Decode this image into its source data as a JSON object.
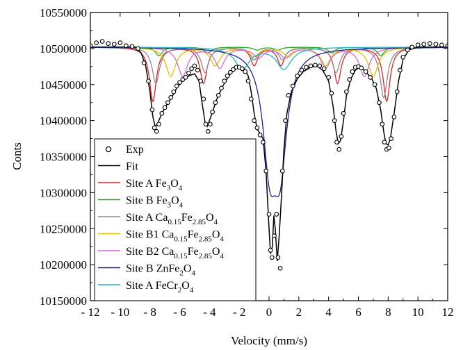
{
  "chart_data": {
    "type": "scatter",
    "xlabel": "Velocity (mm/s)",
    "ylabel": "Conts",
    "xlim": [
      -12,
      12
    ],
    "ylim": [
      10150000,
      10550000
    ],
    "xticks": [
      -12,
      -10,
      -8,
      -6,
      -4,
      -2,
      0,
      2,
      4,
      6,
      8,
      10,
      12
    ],
    "xtick_labels": [
      "- 12",
      "- 10",
      "- 8",
      "- 6",
      "- 4",
      "- 2",
      "0",
      "2",
      "4",
      "6",
      "8",
      "10",
      "12"
    ],
    "yticks": [
      10150000,
      10200000,
      10250000,
      10300000,
      10350000,
      10400000,
      10450000,
      10500000,
      10550000
    ],
    "ytick_labels": [
      "10150000",
      "10200000",
      "10250000",
      "10300000",
      "10350000",
      "10400000",
      "10450000",
      "10500000",
      "10550000"
    ],
    "grid": false,
    "legend_position": "bottom-left",
    "baseline": 10502000,
    "series": [
      {
        "name": "Exp",
        "kind": "markers",
        "color": "#000000",
        "points": [
          [
            -12.0,
            10504000
          ],
          [
            -11.6,
            10508000
          ],
          [
            -11.2,
            10510000
          ],
          [
            -10.8,
            10507000
          ],
          [
            -10.4,
            10506000
          ],
          [
            -10.0,
            10508000
          ],
          [
            -9.6,
            10504000
          ],
          [
            -9.2,
            10503000
          ],
          [
            -8.8,
            10500000
          ],
          [
            -8.4,
            10480000
          ],
          [
            -8.1,
            10455000
          ],
          [
            -7.85,
            10415000
          ],
          [
            -7.7,
            10390000
          ],
          [
            -7.55,
            10385000
          ],
          [
            -7.4,
            10395000
          ],
          [
            -7.2,
            10410000
          ],
          [
            -7.0,
            10418000
          ],
          [
            -6.8,
            10425000
          ],
          [
            -6.6,
            10432000
          ],
          [
            -6.4,
            10440000
          ],
          [
            -6.2,
            10448000
          ],
          [
            -6.0,
            10453000
          ],
          [
            -5.8,
            10457000
          ],
          [
            -5.6,
            10460000
          ],
          [
            -5.4,
            10466000
          ],
          [
            -5.2,
            10472000
          ],
          [
            -5.0,
            10476000
          ],
          [
            -4.8,
            10470000
          ],
          [
            -4.6,
            10455000
          ],
          [
            -4.4,
            10430000
          ],
          [
            -4.25,
            10395000
          ],
          [
            -4.1,
            10385000
          ],
          [
            -3.95,
            10395000
          ],
          [
            -3.8,
            10412000
          ],
          [
            -3.6,
            10425000
          ],
          [
            -3.4,
            10435000
          ],
          [
            -3.2,
            10445000
          ],
          [
            -3.0,
            10455000
          ],
          [
            -2.8,
            10462000
          ],
          [
            -2.6,
            10467000
          ],
          [
            -2.4,
            10471000
          ],
          [
            -2.2,
            10474000
          ],
          [
            -2.0,
            10474000
          ],
          [
            -1.8,
            10472000
          ],
          [
            -1.6,
            10468000
          ],
          [
            -1.4,
            10455000
          ],
          [
            -1.2,
            10430000
          ],
          [
            -1.0,
            10400000
          ],
          [
            -0.8,
            10390000
          ],
          [
            -0.6,
            10380000
          ],
          [
            -0.4,
            10370000
          ],
          [
            -0.2,
            10330000
          ],
          [
            0.0,
            10270000
          ],
          [
            0.1,
            10220000
          ],
          [
            0.2,
            10210000
          ],
          [
            0.35,
            10240000
          ],
          [
            0.5,
            10270000
          ],
          [
            0.6,
            10210000
          ],
          [
            0.75,
            10195000
          ],
          [
            0.9,
            10330000
          ],
          [
            1.1,
            10400000
          ],
          [
            1.3,
            10435000
          ],
          [
            1.6,
            10448000
          ],
          [
            1.9,
            10462000
          ],
          [
            2.2,
            10470000
          ],
          [
            2.5,
            10474000
          ],
          [
            2.8,
            10476000
          ],
          [
            3.1,
            10477000
          ],
          [
            3.4,
            10476000
          ],
          [
            3.7,
            10472000
          ],
          [
            4.0,
            10460000
          ],
          [
            4.2,
            10438000
          ],
          [
            4.4,
            10400000
          ],
          [
            4.55,
            10370000
          ],
          [
            4.7,
            10360000
          ],
          [
            4.85,
            10378000
          ],
          [
            5.0,
            10410000
          ],
          [
            5.2,
            10440000
          ],
          [
            5.4,
            10457000
          ],
          [
            5.6,
            10468000
          ],
          [
            5.8,
            10474000
          ],
          [
            6.0,
            10475000
          ],
          [
            6.2,
            10473000
          ],
          [
            6.5,
            10468000
          ],
          [
            6.8,
            10460000
          ],
          [
            7.1,
            10450000
          ],
          [
            7.4,
            10425000
          ],
          [
            7.6,
            10395000
          ],
          [
            7.75,
            10370000
          ],
          [
            7.9,
            10360000
          ],
          [
            8.05,
            10362000
          ],
          [
            8.2,
            10375000
          ],
          [
            8.4,
            10405000
          ],
          [
            8.6,
            10440000
          ],
          [
            8.8,
            10470000
          ],
          [
            9.0,
            10488000
          ],
          [
            9.3,
            10498000
          ],
          [
            9.6,
            10502000
          ],
          [
            10.0,
            10505000
          ],
          [
            10.4,
            10506000
          ],
          [
            10.8,
            10507000
          ],
          [
            11.2,
            10506000
          ],
          [
            11.6,
            10505000
          ],
          [
            12.0,
            10504000
          ]
        ]
      },
      {
        "name": "Fit",
        "kind": "line",
        "color": "#000000",
        "points": [
          [
            -12.0,
            10502000
          ],
          [
            -9.0,
            10502000
          ],
          [
            -8.6,
            10494000
          ],
          [
            -8.3,
            10478000
          ],
          [
            -8.0,
            10440000
          ],
          [
            -7.8,
            10405000
          ],
          [
            -7.65,
            10392000
          ],
          [
            -7.5,
            10395000
          ],
          [
            -7.3,
            10405000
          ],
          [
            -7.0,
            10418000
          ],
          [
            -6.6,
            10430000
          ],
          [
            -6.2,
            10445000
          ],
          [
            -5.8,
            10455000
          ],
          [
            -5.4,
            10462000
          ],
          [
            -5.0,
            10465000
          ],
          [
            -4.7,
            10455000
          ],
          [
            -4.5,
            10425000
          ],
          [
            -4.3,
            10398000
          ],
          [
            -4.15,
            10392000
          ],
          [
            -4.0,
            10400000
          ],
          [
            -3.8,
            10412000
          ],
          [
            -3.5,
            10430000
          ],
          [
            -3.1,
            10448000
          ],
          [
            -2.7,
            10462000
          ],
          [
            -2.3,
            10472000
          ],
          [
            -2.0,
            10475000
          ],
          [
            -1.7,
            10473000
          ],
          [
            -1.4,
            10462000
          ],
          [
            -1.2,
            10440000
          ],
          [
            -1.0,
            10410000
          ],
          [
            -0.8,
            10388000
          ],
          [
            -0.6,
            10382000
          ],
          [
            -0.4,
            10375000
          ],
          [
            -0.2,
            10330000
          ],
          [
            0.0,
            10250000
          ],
          [
            0.1,
            10215000
          ],
          [
            0.22,
            10225000
          ],
          [
            0.32,
            10268000
          ],
          [
            0.42,
            10250000
          ],
          [
            0.55,
            10205000
          ],
          [
            0.68,
            10240000
          ],
          [
            0.85,
            10300000
          ],
          [
            1.0,
            10360000
          ],
          [
            1.2,
            10410000
          ],
          [
            1.5,
            10440000
          ],
          [
            1.9,
            10458000
          ],
          [
            2.3,
            10468000
          ],
          [
            2.8,
            10474000
          ],
          [
            3.2,
            10476000
          ],
          [
            3.6,
            10470000
          ],
          [
            4.0,
            10455000
          ],
          [
            4.3,
            10420000
          ],
          [
            4.5,
            10385000
          ],
          [
            4.65,
            10368000
          ],
          [
            4.8,
            10372000
          ],
          [
            5.0,
            10400000
          ],
          [
            5.2,
            10435000
          ],
          [
            5.5,
            10458000
          ],
          [
            5.8,
            10470000
          ],
          [
            6.1,
            10474000
          ],
          [
            6.5,
            10468000
          ],
          [
            6.9,
            10458000
          ],
          [
            7.2,
            10445000
          ],
          [
            7.5,
            10415000
          ],
          [
            7.7,
            10385000
          ],
          [
            7.85,
            10368000
          ],
          [
            8.0,
            10366000
          ],
          [
            8.15,
            10375000
          ],
          [
            8.4,
            10410000
          ],
          [
            8.7,
            10455000
          ],
          [
            9.0,
            10485000
          ],
          [
            9.4,
            10498000
          ],
          [
            10.0,
            10502000
          ],
          [
            12.0,
            10502000
          ]
        ]
      }
    ],
    "components": [
      {
        "name": "Site A Fe3O4",
        "color": "#e32222",
        "width": 0.28,
        "peaks": [
          [
            -7.8,
            75000
          ],
          [
            -4.4,
            50000
          ],
          [
            -1.0,
            25000
          ],
          [
            0.8,
            25000
          ],
          [
            4.6,
            50000
          ],
          [
            7.9,
            75000
          ]
        ]
      },
      {
        "name": "Site B Fe3O4",
        "color": "#22aa22",
        "width": 0.28,
        "peaks": [
          [
            -7.4,
            12000
          ],
          [
            -4.1,
            8000
          ],
          [
            -0.8,
            4000
          ],
          [
            0.6,
            4000
          ],
          [
            4.2,
            8000
          ],
          [
            7.5,
            12000
          ]
        ]
      },
      {
        "name": "Site A Ca0.15Fe2.85O4",
        "color": "#8a8a8a",
        "width": 0.3,
        "peaks": [
          [
            -7.6,
            50000
          ],
          [
            -4.3,
            35000
          ],
          [
            -1.0,
            17000
          ],
          [
            0.9,
            17000
          ],
          [
            4.5,
            35000
          ],
          [
            7.7,
            70000
          ]
        ]
      },
      {
        "name": "Site B1 Ca0.15Fe2.85O4",
        "color": "#e0c200",
        "width": 0.4,
        "peaks": [
          [
            -6.6,
            40000
          ],
          [
            -3.6,
            25000
          ],
          [
            -1.0,
            12000
          ],
          [
            1.3,
            12000
          ],
          [
            3.8,
            25000
          ],
          [
            7.0,
            40000
          ]
        ]
      },
      {
        "name": "Site B2 Ca0.15Fe2.85O4",
        "color": "#d66bd6",
        "width": 0.4,
        "peaks": [
          [
            -5.8,
            40000
          ],
          [
            -3.3,
            28000
          ],
          [
            -0.7,
            14000
          ],
          [
            1.1,
            14000
          ],
          [
            3.8,
            28000
          ],
          [
            6.4,
            40000
          ]
        ]
      },
      {
        "name": "Site B ZnFe2O4",
        "color": "#1f1f8f",
        "width": 0.55,
        "peaks": [
          [
            0.05,
            145000
          ],
          [
            0.75,
            145000
          ]
        ]
      },
      {
        "name": "Site A FeCr2O4",
        "color": "#22b5c8",
        "width": 0.6,
        "peaks": [
          [
            -1.8,
            30000
          ],
          [
            1.0,
            30000
          ]
        ]
      }
    ],
    "legend": [
      {
        "type": "marker",
        "label": "Exp",
        "color": "#000000"
      },
      {
        "type": "line",
        "label": "Fit",
        "color": "#000000"
      },
      {
        "type": "line",
        "color": "#e32222",
        "label_parts": [
          [
            "Site A Fe",
            ""
          ],
          [
            "3",
            "sub"
          ],
          [
            "O",
            ""
          ],
          [
            "4",
            "sub"
          ]
        ]
      },
      {
        "type": "line",
        "color": "#22aa22",
        "label_parts": [
          [
            "Site B Fe",
            ""
          ],
          [
            "3",
            "sub"
          ],
          [
            "O",
            ""
          ],
          [
            "4",
            "sub"
          ]
        ]
      },
      {
        "type": "line",
        "color": "#8a8a8a",
        "label_parts": [
          [
            "Site A Ca",
            ""
          ],
          [
            "0.15",
            "sub"
          ],
          [
            "Fe",
            ""
          ],
          [
            "2.85",
            "sub"
          ],
          [
            "O",
            ""
          ],
          [
            "4",
            "sub"
          ]
        ]
      },
      {
        "type": "line",
        "color": "#e0c200",
        "label_parts": [
          [
            "Site B1 Ca",
            ""
          ],
          [
            "0.15",
            "sub"
          ],
          [
            "Fe",
            ""
          ],
          [
            "2.85",
            "sub"
          ],
          [
            "O",
            ""
          ],
          [
            "4",
            "sub"
          ]
        ]
      },
      {
        "type": "line",
        "color": "#d66bd6",
        "label_parts": [
          [
            "Site B2 Ca",
            ""
          ],
          [
            "0.15",
            "sub"
          ],
          [
            "Fe",
            ""
          ],
          [
            "2.85",
            "sub"
          ],
          [
            "O",
            ""
          ],
          [
            "4",
            "sub"
          ]
        ]
      },
      {
        "type": "line",
        "color": "#1f1f8f",
        "label_parts": [
          [
            "Site B ZnFe",
            ""
          ],
          [
            "2",
            "sub"
          ],
          [
            "O",
            ""
          ],
          [
            "4",
            "sub"
          ]
        ]
      },
      {
        "type": "line",
        "color": "#22b5c8",
        "label_parts": [
          [
            "Site A FeCr",
            ""
          ],
          [
            "2",
            "sub"
          ],
          [
            "O",
            ""
          ],
          [
            "4",
            "sub"
          ]
        ]
      }
    ]
  }
}
